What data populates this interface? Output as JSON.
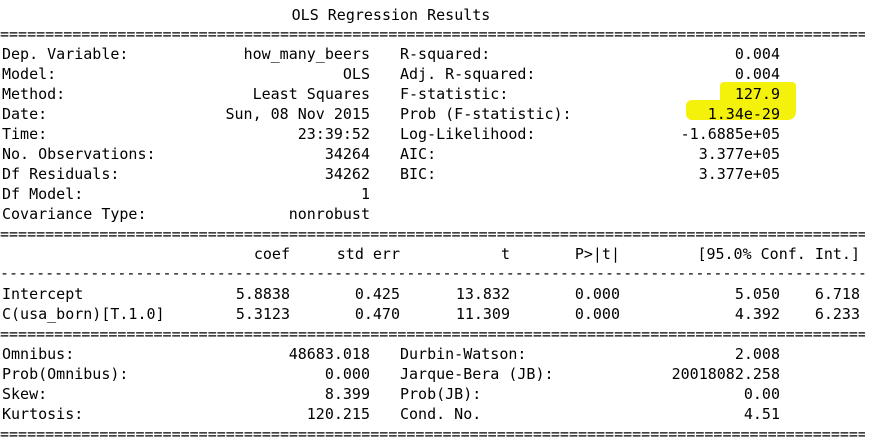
{
  "title": "OLS Regression Results",
  "rules": {
    "double": "==============================================================================================================",
    "dashed": "--------------------------------------------------------------------------------------------------------------"
  },
  "colors": {
    "highlight": "#f4f10a",
    "text": "#000000",
    "background": "#ffffff"
  },
  "summary_left": [
    {
      "label": "Dep. Variable:",
      "value": "how_many_beers"
    },
    {
      "label": "Model:",
      "value": "OLS"
    },
    {
      "label": "Method:",
      "value": "Least Squares"
    },
    {
      "label": "Date:",
      "value": "Sun, 08 Nov 2015"
    },
    {
      "label": "Time:",
      "value": "23:39:52"
    },
    {
      "label": "No. Observations:",
      "value": "34264"
    },
    {
      "label": "Df Residuals:",
      "value": "34262"
    },
    {
      "label": "Df Model:",
      "value": "1"
    },
    {
      "label": "Covariance Type:",
      "value": "nonrobust"
    }
  ],
  "summary_right": [
    {
      "label": "R-squared:",
      "value": "0.004"
    },
    {
      "label": "Adj. R-squared:",
      "value": "0.004"
    },
    {
      "label": "F-statistic:",
      "value": "127.9"
    },
    {
      "label": "Prob (F-statistic):",
      "value": "1.34e-29"
    },
    {
      "label": "Log-Likelihood:",
      "value": "-1.6885e+05"
    },
    {
      "label": "AIC:",
      "value": "3.377e+05"
    },
    {
      "label": "BIC:",
      "value": "3.377e+05"
    }
  ],
  "coef_table": {
    "headers": [
      "coef",
      "std err",
      "t",
      "P>|t|",
      "[95.0% Conf. Int.]"
    ],
    "rows": [
      {
        "name": "Intercept",
        "coef": "5.8838",
        "std_err": "0.425",
        "t": "13.832",
        "p": "0.000",
        "ci_low": "5.050",
        "ci_high": "6.718"
      },
      {
        "name": "C(usa_born)[T.1.0]",
        "coef": "5.3123",
        "std_err": "0.470",
        "t": "11.309",
        "p": "0.000",
        "ci_low": "4.392",
        "ci_high": "6.233"
      }
    ]
  },
  "diag_left": [
    {
      "label": "Omnibus:",
      "value": "48683.018"
    },
    {
      "label": "Prob(Omnibus):",
      "value": "0.000"
    },
    {
      "label": "Skew:",
      "value": "8.399"
    },
    {
      "label": "Kurtosis:",
      "value": "120.215"
    }
  ],
  "diag_right": [
    {
      "label": "Durbin-Watson:",
      "value": "2.008"
    },
    {
      "label": "Jarque-Bera (JB):",
      "value": "20018082.258"
    },
    {
      "label": "Prob(JB):",
      "value": "0.00"
    },
    {
      "label": "Cond. No.",
      "value": "4.51"
    }
  ]
}
